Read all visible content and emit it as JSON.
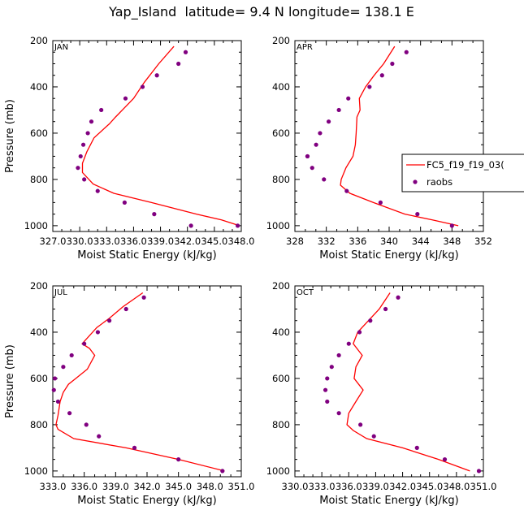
{
  "title": "Yap_Island  latitude= 9.4 N longitude= 138.1 E",
  "legend": {
    "model_label": "FC5_f19_f19_03(",
    "obs_label": "raobs"
  },
  "colors": {
    "model": "#ff0000",
    "obs": "#800080",
    "axis": "#000000"
  },
  "chart_data": [
    {
      "type": "line",
      "panel": "JAN",
      "xlabel": "Moist Static Energy (kJ/kg)",
      "ylabel": "Pressure (mb)",
      "xlim": [
        327.0,
        348.0
      ],
      "ylim": [
        200,
        1025
      ],
      "xticks": [
        327.0,
        330.0,
        333.0,
        336.0,
        339.0,
        342.0,
        345.0,
        348.0
      ],
      "xtick_labels": [
        "327.0",
        "330.0",
        "333.0",
        "336.0",
        "339.0",
        "342.0",
        "345.0",
        "348.0"
      ],
      "yticks": [
        200,
        400,
        600,
        800,
        1000
      ],
      "ytick_labels": [
        "200",
        "400",
        "600",
        "800",
        "1000"
      ],
      "show_ylabel": true,
      "series": [
        {
          "name": "FC5_f19_f19_03(",
          "style": "line",
          "x": [
            340.5,
            338.8,
            337.2,
            336.0,
            335.0,
            334.0,
            333.3,
            331.6,
            330.8,
            330.3,
            330.3,
            331.5,
            333.8,
            338.0,
            343.0,
            345.8,
            347.8
          ],
          "y": [
            225,
            300,
            380,
            450,
            490,
            530,
            560,
            620,
            680,
            730,
            770,
            820,
            860,
            900,
            950,
            975,
            1000
          ]
        },
        {
          "name": "raobs",
          "style": "points",
          "x": [
            341.8,
            341.0,
            338.6,
            337.0,
            335.1,
            332.4,
            331.3,
            330.9,
            330.4,
            330.1,
            329.8,
            330.5,
            332.0,
            335.0,
            338.3,
            342.4,
            347.6
          ],
          "y": [
            250,
            300,
            350,
            400,
            450,
            500,
            550,
            600,
            650,
            700,
            750,
            800,
            850,
            900,
            950,
            1000,
            1000
          ]
        }
      ]
    },
    {
      "type": "line",
      "panel": "APR",
      "xlabel": "Moist Static Energy (kJ/kg)",
      "ylabel": "",
      "xlim": [
        328,
        352
      ],
      "ylim": [
        200,
        1025
      ],
      "xticks": [
        328,
        332,
        336,
        340,
        344,
        348,
        352
      ],
      "xtick_labels": [
        "328",
        "332",
        "336",
        "340",
        "344",
        "348",
        "352"
      ],
      "yticks": [
        200,
        400,
        600,
        800,
        1000
      ],
      "ytick_labels": [
        "200",
        "400",
        "600",
        "800",
        "1000"
      ],
      "show_ylabel": false,
      "show_legend": true,
      "series": [
        {
          "name": "FC5_f19_f19_03(",
          "style": "line",
          "x": [
            340.7,
            339.3,
            338.1,
            337.0,
            336.2,
            336.3,
            335.9,
            335.8,
            335.7,
            335.4,
            334.5,
            333.9,
            333.8,
            335.0,
            338.0,
            342.0,
            345.5,
            348.8
          ],
          "y": [
            225,
            300,
            350,
            400,
            450,
            500,
            530,
            600,
            650,
            700,
            750,
            800,
            825,
            860,
            900,
            950,
            975,
            1000
          ]
        },
        {
          "name": "raobs",
          "style": "points",
          "x": [
            342.2,
            340.4,
            339.1,
            337.5,
            334.8,
            333.6,
            332.3,
            331.2,
            330.7,
            329.6,
            329.6,
            330.2,
            331.7,
            334.6,
            338.9,
            343.6,
            348.0
          ],
          "y": [
            250,
            300,
            350,
            400,
            450,
            500,
            550,
            600,
            650,
            700,
            700,
            750,
            800,
            850,
            900,
            950,
            1000
          ]
        }
      ]
    },
    {
      "type": "line",
      "panel": "JUL",
      "xlabel": "Moist Static Energy (kJ/kg)",
      "ylabel": "Pressure (mb)",
      "xlim": [
        333.0,
        351.0
      ],
      "ylim": [
        200,
        1025
      ],
      "xticks": [
        333.0,
        336.0,
        339.0,
        342.0,
        345.0,
        348.0,
        351.0
      ],
      "xtick_labels": [
        "333.0",
        "336.0",
        "339.0",
        "342.0",
        "345.0",
        "348.0",
        "351.0"
      ],
      "yticks": [
        200,
        400,
        600,
        800,
        1000
      ],
      "ytick_labels": [
        "200",
        "400",
        "600",
        "800",
        "1000"
      ],
      "show_ylabel": true,
      "series": [
        {
          "name": "FC5_f19_f19_03(",
          "style": "line",
          "x": [
            341.6,
            339.7,
            338.4,
            337.2,
            335.8,
            336.5,
            337.0,
            336.3,
            335.2,
            334.5,
            334.0,
            333.7,
            333.5,
            333.3,
            333.5,
            335.0,
            340.0,
            345.0,
            349.4
          ],
          "y": [
            230,
            290,
            340,
            380,
            450,
            470,
            500,
            560,
            600,
            625,
            660,
            700,
            760,
            800,
            820,
            860,
            900,
            950,
            1000
          ]
        },
        {
          "name": "raobs",
          "style": "points",
          "x": [
            341.7,
            340.0,
            338.4,
            337.3,
            336.0,
            334.8,
            334.0,
            333.2,
            333.1,
            333.5,
            334.6,
            336.2,
            337.4,
            340.8,
            345.0,
            349.2
          ],
          "y": [
            250,
            300,
            350,
            400,
            450,
            500,
            550,
            600,
            650,
            700,
            750,
            800,
            850,
            900,
            950,
            1000
          ]
        }
      ]
    },
    {
      "type": "line",
      "panel": "OCT",
      "xlabel": "Moist Static Energy (kJ/kg)",
      "ylabel": "",
      "xlim": [
        330.0,
        351.0
      ],
      "ylim": [
        200,
        1025
      ],
      "xticks": [
        330.0,
        333.0,
        336.0,
        339.0,
        342.0,
        345.0,
        348.0,
        351.0
      ],
      "xtick_labels": [
        "330.0",
        "333.0",
        "336.0",
        "339.0",
        "342.0",
        "345.0",
        "348.0",
        "351.0"
      ],
      "yticks": [
        200,
        400,
        600,
        800,
        1000
      ],
      "ytick_labels": [
        "200",
        "400",
        "600",
        "800",
        "1000"
      ],
      "show_ylabel": false,
      "series": [
        {
          "name": "FC5_f19_f19_03(",
          "style": "line",
          "x": [
            340.6,
            339.4,
            338.2,
            337.0,
            336.5,
            337.5,
            336.8,
            336.6,
            337.6,
            336.8,
            336.0,
            335.8,
            336.5,
            338.0,
            342.0,
            346.0,
            349.5
          ],
          "y": [
            230,
            300,
            350,
            400,
            450,
            500,
            550,
            600,
            650,
            700,
            750,
            800,
            825,
            860,
            900,
            950,
            1000
          ]
        },
        {
          "name": "raobs",
          "style": "points",
          "x": [
            341.5,
            340.1,
            338.4,
            337.2,
            336.0,
            334.9,
            334.1,
            333.6,
            333.4,
            333.6,
            334.9,
            337.3,
            338.8,
            343.6,
            346.7,
            350.5
          ],
          "y": [
            250,
            300,
            350,
            400,
            450,
            500,
            550,
            600,
            650,
            700,
            750,
            800,
            850,
            900,
            950,
            1000
          ]
        }
      ]
    }
  ]
}
